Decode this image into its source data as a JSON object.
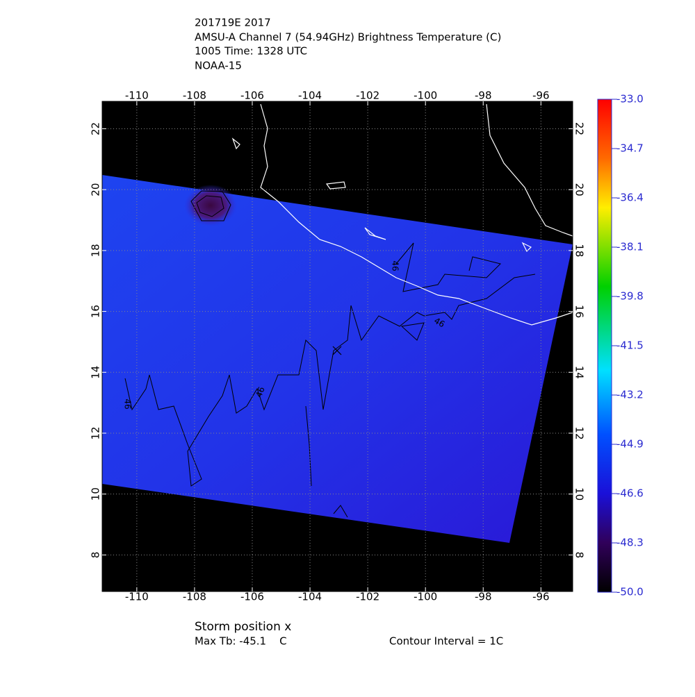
{
  "header": {
    "lines": [
      "201719E 2017",
      "AMSU-A Channel 7 (54.94GHz) Brightness Temperature (C)",
      "1005 Time: 1328 UTC",
      "NOAA-15"
    ]
  },
  "map": {
    "xlim": [
      -111.2,
      -94.9
    ],
    "ylim": [
      6.8,
      22.9
    ],
    "xticks": [
      {
        "value": -110,
        "label": "-110"
      },
      {
        "value": -108,
        "label": "-108"
      },
      {
        "value": -106,
        "label": "-106"
      },
      {
        "value": -104,
        "label": "-104"
      },
      {
        "value": -102,
        "label": "-102"
      },
      {
        "value": -100,
        "label": "-100"
      },
      {
        "value": -98,
        "label": "-98"
      },
      {
        "value": -96,
        "label": "-96"
      }
    ],
    "yticks": [
      8,
      10,
      12,
      14,
      16,
      18,
      20,
      22
    ],
    "contour_labels": [
      "46",
      "46",
      "46",
      "46"
    ]
  },
  "colorbar": {
    "lim": [
      -50,
      -33
    ],
    "ticks": [
      {
        "value": -33,
        "label": "-33.0"
      },
      {
        "value": -34.7,
        "label": "-34.7"
      },
      {
        "value": -36.4,
        "label": "-36.4"
      },
      {
        "value": -38.1,
        "label": "-38.1"
      },
      {
        "value": -39.8,
        "label": "-39.8"
      },
      {
        "value": -41.5,
        "label": "-41.5"
      },
      {
        "value": -43.2,
        "label": "-43.2"
      },
      {
        "value": -44.9,
        "label": "-44.9"
      },
      {
        "value": -46.6,
        "label": "-46.6"
      },
      {
        "value": -48.3,
        "label": "-48.3"
      },
      {
        "value": -50,
        "label": "-50.0"
      }
    ]
  },
  "footer": {
    "storm": "Storm position x",
    "max_tb": "Max Tb: -45.1    C",
    "contour_interval": "Contour Interval = 1C"
  }
}
